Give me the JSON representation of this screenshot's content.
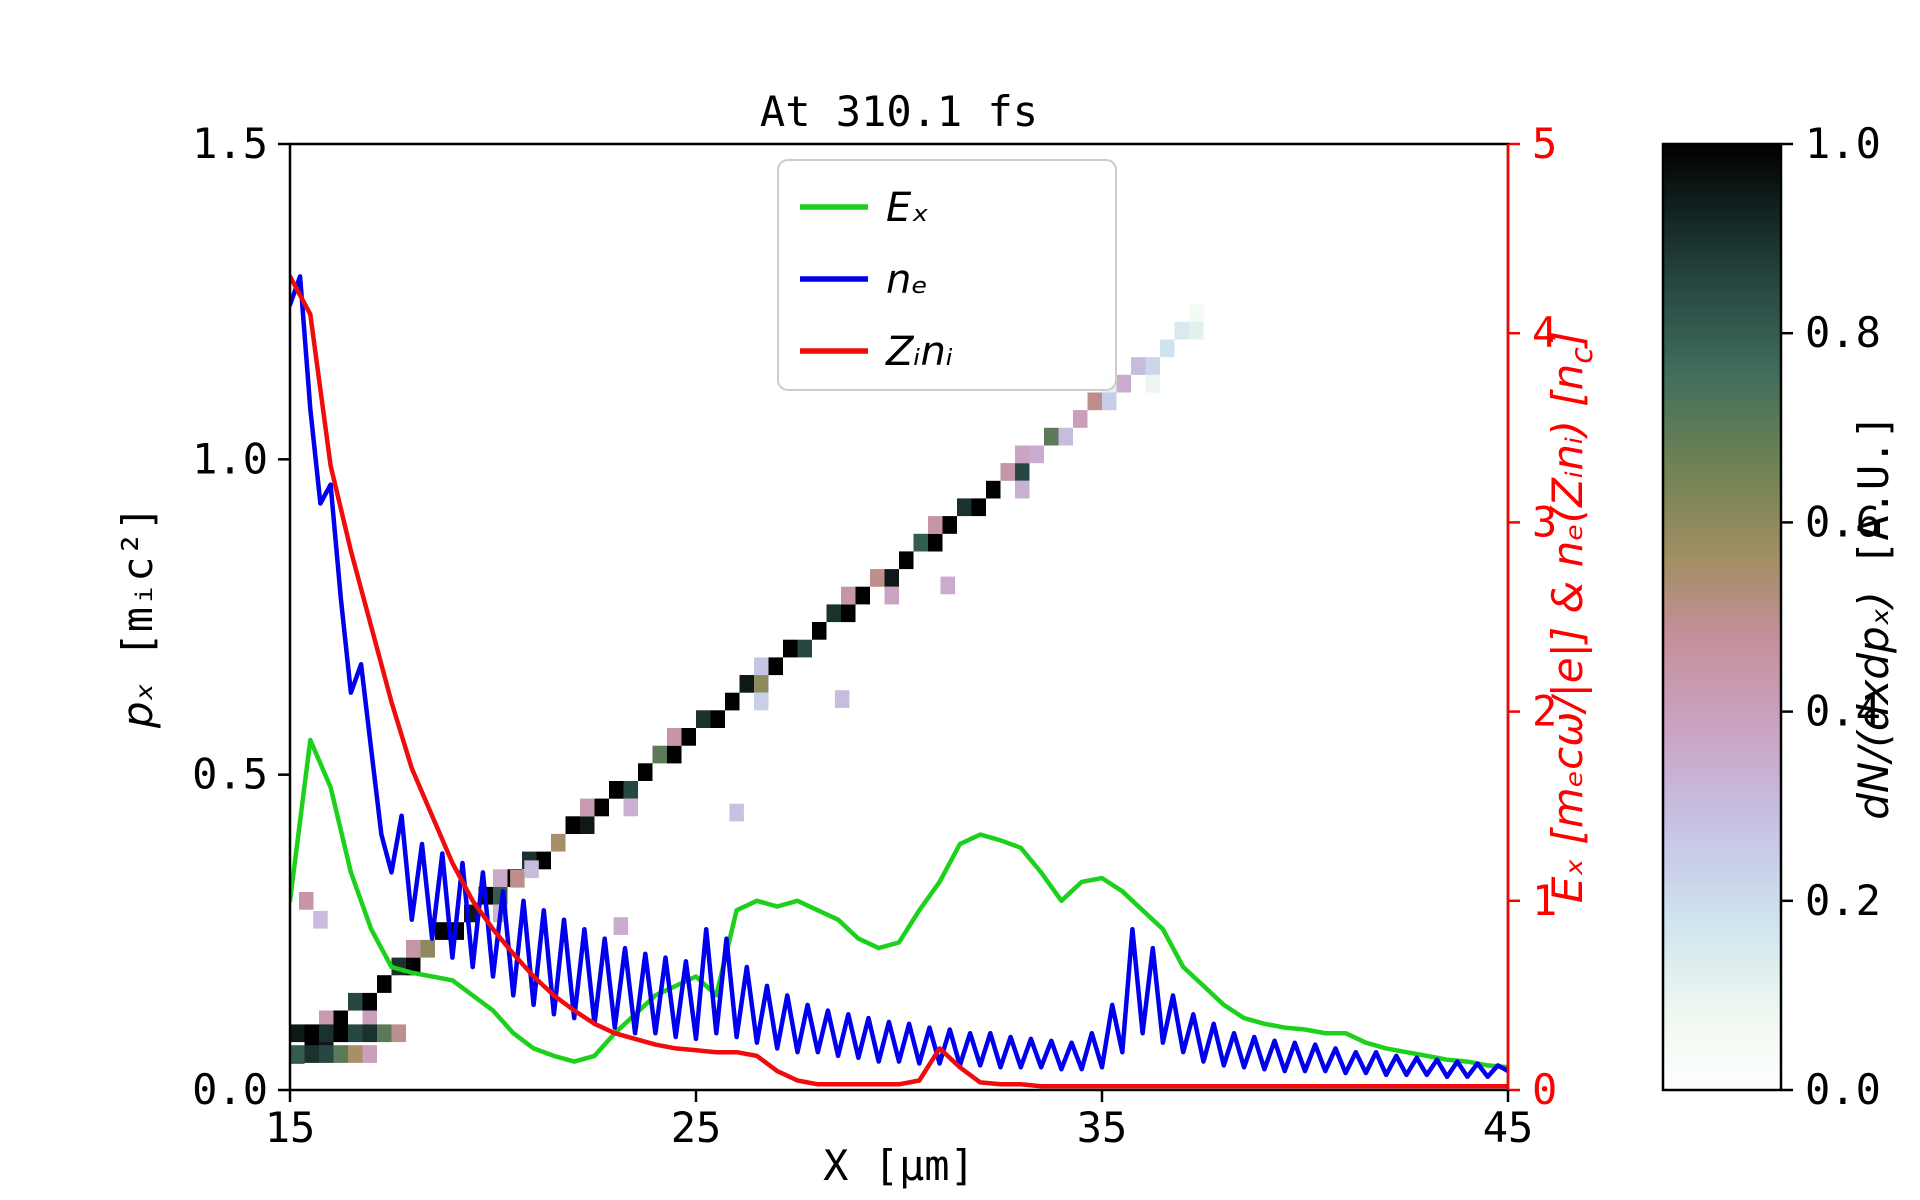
{
  "title": "At 310.1 fs",
  "axes": {
    "x": {
      "label": "X [μm]",
      "min": 15,
      "max": 45,
      "tick_values": [
        15,
        25,
        35,
        45
      ],
      "tick_labels": [
        "15",
        "25",
        "35",
        "45"
      ]
    },
    "y_left": {
      "label_math": "pₓ",
      "label_unit": " [mᵢc²]",
      "min": 0,
      "max": 1.5,
      "tick_values": [
        0,
        0.5,
        1.0,
        1.5
      ],
      "tick_labels": [
        "0.0",
        "0.5",
        "1.0",
        "1.5"
      ]
    },
    "y_right": {
      "label_pre": "Eₓ [mₑcω/|e|] & nₑ(Zᵢnᵢ) [n",
      "label_sub": "c",
      "label_post": "]",
      "min": 0,
      "max": 5,
      "tick_values": [
        0,
        1,
        2,
        3,
        4,
        5
      ],
      "tick_labels": [
        "0",
        "1",
        "2",
        "3",
        "4",
        "5"
      ],
      "color": "#ff0000"
    }
  },
  "colorbar": {
    "label_math": "dN/(dxdpₓ)",
    "label_unit": " [A.U.]",
    "tick_values": [
      0,
      0.2,
      0.4,
      0.6,
      0.8,
      1.0
    ],
    "tick_labels": [
      "0.0",
      "0.2",
      "0.4",
      "0.6",
      "0.8",
      "1.0"
    ],
    "gradient": [
      [
        0.0,
        "#ffffff"
      ],
      [
        0.08,
        "#eef8ef"
      ],
      [
        0.18,
        "#cfe3ef"
      ],
      [
        0.28,
        "#c6c2e4"
      ],
      [
        0.38,
        "#cba3c4"
      ],
      [
        0.48,
        "#c48f9b"
      ],
      [
        0.56,
        "#a38f63"
      ],
      [
        0.66,
        "#6f8353"
      ],
      [
        0.76,
        "#3f6d5c"
      ],
      [
        0.86,
        "#24443f"
      ],
      [
        1.0,
        "#000000"
      ]
    ]
  },
  "legend": {
    "items": [
      {
        "label": "Eₓ",
        "color": "#1bd11b"
      },
      {
        "label": "nₑ",
        "color": "#0000ee"
      },
      {
        "label": "Zᵢnᵢ",
        "color": "#f00c0c"
      }
    ]
  },
  "chart_data": [
    {
      "type": "line",
      "title": "At 310.1 fs",
      "xlabel": "X [μm]",
      "ylabel_left": "px [mi c^2]",
      "ylabel_right": "Ex [me c w/|e|] & ne(Zi ni) [nc]",
      "x_range": [
        15,
        45
      ],
      "y_right_range": [
        0,
        5
      ],
      "y_left_range": [
        0,
        1.5
      ],
      "legend_position": "upper center",
      "grid": false,
      "series": [
        {
          "name": "Ex",
          "axis": "right",
          "color": "#1bd11b",
          "x_start": 15,
          "x_step": 0.5,
          "values": [
            1.0,
            1.85,
            1.6,
            1.15,
            0.85,
            0.65,
            0.62,
            0.6,
            0.58,
            0.5,
            0.42,
            0.3,
            0.22,
            0.18,
            0.15,
            0.18,
            0.3,
            0.4,
            0.5,
            0.55,
            0.6,
            0.5,
            0.95,
            1.0,
            0.97,
            1.0,
            0.95,
            0.9,
            0.8,
            0.75,
            0.78,
            0.95,
            1.1,
            1.3,
            1.35,
            1.32,
            1.28,
            1.15,
            1.0,
            1.1,
            1.12,
            1.05,
            0.95,
            0.85,
            0.65,
            0.55,
            0.45,
            0.38,
            0.35,
            0.33,
            0.32,
            0.3,
            0.3,
            0.25,
            0.22,
            0.2,
            0.18,
            0.16,
            0.15,
            0.13,
            0.12
          ]
        },
        {
          "name": "ne",
          "axis": "right",
          "color": "#0000ee",
          "x_start": 15,
          "x_step": 0.25,
          "values": [
            4.15,
            4.3,
            3.6,
            3.1,
            3.2,
            2.6,
            2.1,
            2.25,
            1.8,
            1.35,
            1.15,
            1.45,
            0.9,
            1.3,
            0.8,
            1.25,
            0.7,
            1.2,
            0.65,
            1.15,
            0.6,
            1.05,
            0.5,
            1.0,
            0.45,
            0.95,
            0.4,
            0.9,
            0.38,
            0.85,
            0.35,
            0.8,
            0.33,
            0.75,
            0.3,
            0.72,
            0.3,
            0.7,
            0.28,
            0.68,
            0.27,
            0.85,
            0.3,
            0.8,
            0.28,
            0.65,
            0.25,
            0.55,
            0.22,
            0.5,
            0.2,
            0.45,
            0.2,
            0.42,
            0.18,
            0.4,
            0.17,
            0.38,
            0.15,
            0.36,
            0.15,
            0.35,
            0.14,
            0.33,
            0.14,
            0.32,
            0.13,
            0.3,
            0.13,
            0.3,
            0.12,
            0.28,
            0.12,
            0.27,
            0.12,
            0.26,
            0.11,
            0.25,
            0.11,
            0.3,
            0.12,
            0.45,
            0.2,
            0.85,
            0.3,
            0.75,
            0.25,
            0.5,
            0.2,
            0.4,
            0.15,
            0.35,
            0.13,
            0.3,
            0.12,
            0.28,
            0.11,
            0.26,
            0.1,
            0.25,
            0.1,
            0.24,
            0.1,
            0.22,
            0.09,
            0.2,
            0.09,
            0.2,
            0.08,
            0.18,
            0.08,
            0.17,
            0.08,
            0.16,
            0.07,
            0.15,
            0.07,
            0.14,
            0.07,
            0.13,
            0.1
          ]
        },
        {
          "name": "Zi ni",
          "axis": "right",
          "color": "#f00c0c",
          "x_start": 15,
          "x_step": 0.5,
          "values": [
            4.3,
            4.1,
            3.3,
            2.85,
            2.45,
            2.05,
            1.7,
            1.45,
            1.2,
            1.0,
            0.85,
            0.72,
            0.6,
            0.5,
            0.42,
            0.35,
            0.3,
            0.27,
            0.24,
            0.22,
            0.21,
            0.2,
            0.2,
            0.18,
            0.1,
            0.05,
            0.03,
            0.03,
            0.03,
            0.03,
            0.03,
            0.05,
            0.22,
            0.12,
            0.04,
            0.03,
            0.03,
            0.02,
            0.02,
            0.02,
            0.02,
            0.02,
            0.02,
            0.02,
            0.02,
            0.02,
            0.02,
            0.02,
            0.02,
            0.02,
            0.02,
            0.02,
            0.02,
            0.02,
            0.02,
            0.02,
            0.02,
            0.02,
            0.02,
            0.02,
            0.02
          ]
        }
      ]
    },
    {
      "type": "heatmap",
      "name": "dN/(dxdpx) phase space",
      "value_range": [
        0,
        1
      ],
      "cell_dx": 0.357,
      "cell_dp": 0.028,
      "band": {
        "x0": 15,
        "p0": 0.05,
        "x1": 37.5,
        "p1": 1.22,
        "values": [
          1,
          1,
          0.95,
          1,
          0.85,
          1,
          1,
          0.9,
          1,
          0.6,
          1,
          1,
          0.95,
          1,
          0.8,
          1,
          0.9,
          1,
          0.55,
          1,
          0.95,
          1,
          1,
          0.85,
          1,
          0.7,
          1,
          1,
          0.9,
          1,
          1,
          0.95,
          0.6,
          1,
          1,
          0.85,
          1,
          0.9,
          1,
          1,
          0.5,
          0.95,
          1,
          0.8,
          1,
          1,
          0.9,
          1,
          1,
          0.45,
          0.85,
          0.35,
          0.7,
          0.3,
          0.4,
          0.5,
          0.25,
          0.35,
          0.3,
          0.22,
          0.18,
          0.15,
          0.12
        ]
      },
      "rows": [
        {
          "x0": 15,
          "p": 0.09,
          "values": [
            0.95,
            1,
            0.9,
            1,
            0.85,
            0.9,
            0.7,
            0.5
          ]
        },
        {
          "x0": 15,
          "p": 0.057,
          "values": [
            0.8,
            0.9,
            0.85,
            0.7,
            0.55,
            0.4
          ]
        }
      ],
      "speckles": [
        [
          15.4,
          0.3,
          0.45
        ],
        [
          15.75,
          0.27,
          0.3
        ],
        [
          20.6,
          0.335,
          0.5
        ],
        [
          20.95,
          0.35,
          0.3
        ],
        [
          23.15,
          0.26,
          0.35
        ],
        [
          26.0,
          0.44,
          0.28
        ],
        [
          28.6,
          0.62,
          0.3
        ],
        [
          31.2,
          0.8,
          0.35
        ]
      ]
    }
  ]
}
